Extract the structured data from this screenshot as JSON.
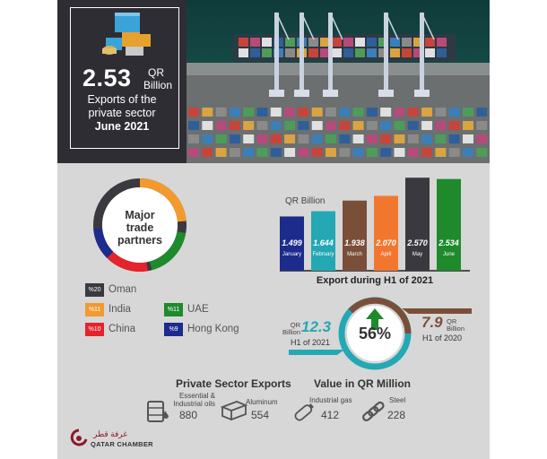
{
  "hero": {
    "value": "2.53",
    "unit_line1": "QR",
    "unit_line2": "Billion",
    "subtitle_line1": "Exports of the",
    "subtitle_line2": "private sector",
    "date": "June 2021"
  },
  "partners": {
    "title_line1": "Major",
    "title_line2": "trade",
    "title_line3": "partners",
    "items": [
      {
        "pct": "%20",
        "name": "Oman",
        "share": 20,
        "color": "#3a3940"
      },
      {
        "pct": "%11",
        "name": "UAE",
        "share": 11,
        "color": "#1e8a2c"
      },
      {
        "pct": "%11",
        "name": "India",
        "share": 11,
        "color": "#f29a2e"
      },
      {
        "pct": "%10",
        "name": "China",
        "share": 10,
        "color": "#e4232a"
      },
      {
        "pct": "%9",
        "name": "Hong Kong",
        "share": 9,
        "color": "#1c2b8c"
      }
    ]
  },
  "chart_data": {
    "type": "bar",
    "title": "Export during H1 of 2021",
    "ylabel": "QR Billion",
    "categories": [
      "January",
      "February",
      "March",
      "April",
      "May",
      "June"
    ],
    "values": [
      1.499,
      1.644,
      1.938,
      2.07,
      2.57,
      2.534
    ],
    "value_labels": [
      "1.499",
      "1.644",
      "1.938",
      "2.070",
      "2.570",
      "2.534"
    ],
    "colors": [
      "#1c2b8c",
      "#24a8b4",
      "#7a4f3a",
      "#f2772e",
      "#3a3940",
      "#1e8a2c"
    ],
    "ylim": [
      0,
      2.6
    ],
    "grid": false
  },
  "comparison": {
    "h1_2021_value": "12.3",
    "h1_2021_unit_line1": "QR",
    "h1_2021_unit_line2": "Billion",
    "h1_2021_label": "H1 of 2021",
    "growth": "56%",
    "h1_2020_value": "7.9",
    "h1_2020_unit_line1": "QR",
    "h1_2020_unit_line2": "Billion",
    "h1_2020_label": "H1 of 2020"
  },
  "exports": {
    "title": "Private Sector Exports",
    "subtitle": "Value in QR Million",
    "items": [
      {
        "name_line1": "Essential &",
        "name_line2": "Industrial oils",
        "value": "880",
        "icon": "oil-barrel-icon"
      },
      {
        "name_line1": "Aluminum",
        "name_line2": "",
        "value": "554",
        "icon": "aluminum-beam-icon"
      },
      {
        "name_line1": "Industrial gas",
        "name_line2": "",
        "value": "412",
        "icon": "gas-cylinder-icon"
      },
      {
        "name_line1": "Steel",
        "name_line2": "",
        "value": "228",
        "icon": "steel-chain-icon"
      }
    ]
  },
  "brand": {
    "arabic": "غرفة قطر",
    "name": "QATAR CHAMBER",
    "color": "#8b1a2c"
  }
}
